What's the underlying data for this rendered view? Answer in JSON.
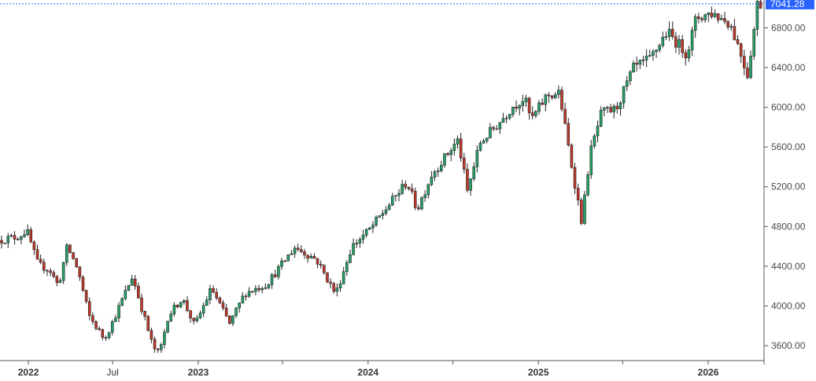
{
  "chart_data": {
    "type": "candlestick",
    "y_axis": {
      "position": "right",
      "range": [
        3450,
        7080
      ],
      "ticks": [
        3600,
        4000,
        4400,
        4800,
        5200,
        5600,
        6000,
        6400,
        6800
      ],
      "tick_labels": [
        "3600.00",
        "4000.00",
        "4400.00",
        "4800.00",
        "5200.00",
        "5600.00",
        "6000.00",
        "6400.00",
        "6800.00"
      ]
    },
    "x_axis": {
      "range": [
        "2021-11-01",
        "2026-05-01"
      ],
      "labels": [
        {
          "date": "2022-01-01",
          "text": "2022",
          "bold": true
        },
        {
          "date": "2022-07-01",
          "text": "Jul",
          "bold": false
        },
        {
          "date": "2023-01-01",
          "text": "2023",
          "bold": true
        },
        {
          "date": "2023-07-01",
          "text": "",
          "bold": false
        },
        {
          "date": "2024-01-01",
          "text": "2024",
          "bold": true
        },
        {
          "date": "2024-07-01",
          "text": "",
          "bold": false
        },
        {
          "date": "2025-01-01",
          "text": "2025",
          "bold": true
        },
        {
          "date": "2025-07-01",
          "text": "",
          "bold": false
        },
        {
          "date": "2026-01-01",
          "text": "2026",
          "bold": true
        },
        {
          "date": "2026-05-01",
          "text": "",
          "bold": false
        }
      ]
    },
    "last_price": {
      "value": 7041.28,
      "label": "7041.28"
    },
    "colors": {
      "up": "#26a269",
      "down": "#c0392b",
      "wick": "#222222",
      "price_line": "#2962ff",
      "axis": "#555555"
    },
    "trend_points": [
      [
        "2021-11-01",
        4660
      ],
      [
        "2021-12-15",
        4700
      ],
      [
        "2022-01-01",
        4760
      ],
      [
        "2022-01-25",
        4420
      ],
      [
        "2022-02-20",
        4360
      ],
      [
        "2022-03-10",
        4200
      ],
      [
        "2022-03-29",
        4600
      ],
      [
        "2022-04-20",
        4380
      ],
      [
        "2022-05-15",
        3900
      ],
      [
        "2022-06-16",
        3670
      ],
      [
        "2022-07-01",
        3800
      ],
      [
        "2022-08-16",
        4300
      ],
      [
        "2022-09-10",
        3900
      ],
      [
        "2022-09-30",
        3580
      ],
      [
        "2022-10-13",
        3520
      ],
      [
        "2022-11-01",
        3900
      ],
      [
        "2022-12-01",
        4080
      ],
      [
        "2022-12-28",
        3800
      ],
      [
        "2023-02-02",
        4180
      ],
      [
        "2023-03-13",
        3820
      ],
      [
        "2023-04-15",
        4130
      ],
      [
        "2023-06-01",
        4220
      ],
      [
        "2023-07-31",
        4590
      ],
      [
        "2023-09-15",
        4470
      ],
      [
        "2023-10-27",
        4120
      ],
      [
        "2023-12-01",
        4600
      ],
      [
        "2024-01-10",
        4780
      ],
      [
        "2024-03-28",
        5250
      ],
      [
        "2024-04-19",
        4970
      ],
      [
        "2024-05-20",
        5320
      ],
      [
        "2024-07-16",
        5670
      ],
      [
        "2024-08-05",
        5150
      ],
      [
        "2024-09-01",
        5640
      ],
      [
        "2024-10-15",
        5860
      ],
      [
        "2024-11-10",
        6010
      ],
      [
        "2024-12-06",
        6090
      ],
      [
        "2024-12-20",
        5870
      ],
      [
        "2025-01-23",
        6120
      ],
      [
        "2025-02-19",
        6140
      ],
      [
        "2025-03-13",
        5520
      ],
      [
        "2025-04-08",
        4840
      ],
      [
        "2025-04-25",
        5520
      ],
      [
        "2025-05-20",
        5940
      ],
      [
        "2025-06-20",
        5980
      ],
      [
        "2025-07-28",
        6390
      ],
      [
        "2025-09-01",
        6480
      ],
      [
        "2025-10-08",
        6760
      ],
      [
        "2025-11-20",
        6540
      ],
      [
        "2025-12-10",
        6900
      ],
      [
        "2026-01-12",
        6950
      ],
      [
        "2026-02-20",
        6850
      ],
      [
        "2026-03-10",
        6620
      ],
      [
        "2026-03-30",
        6330
      ],
      [
        "2026-04-14",
        6820
      ],
      [
        "2026-04-20",
        7041
      ]
    ]
  }
}
